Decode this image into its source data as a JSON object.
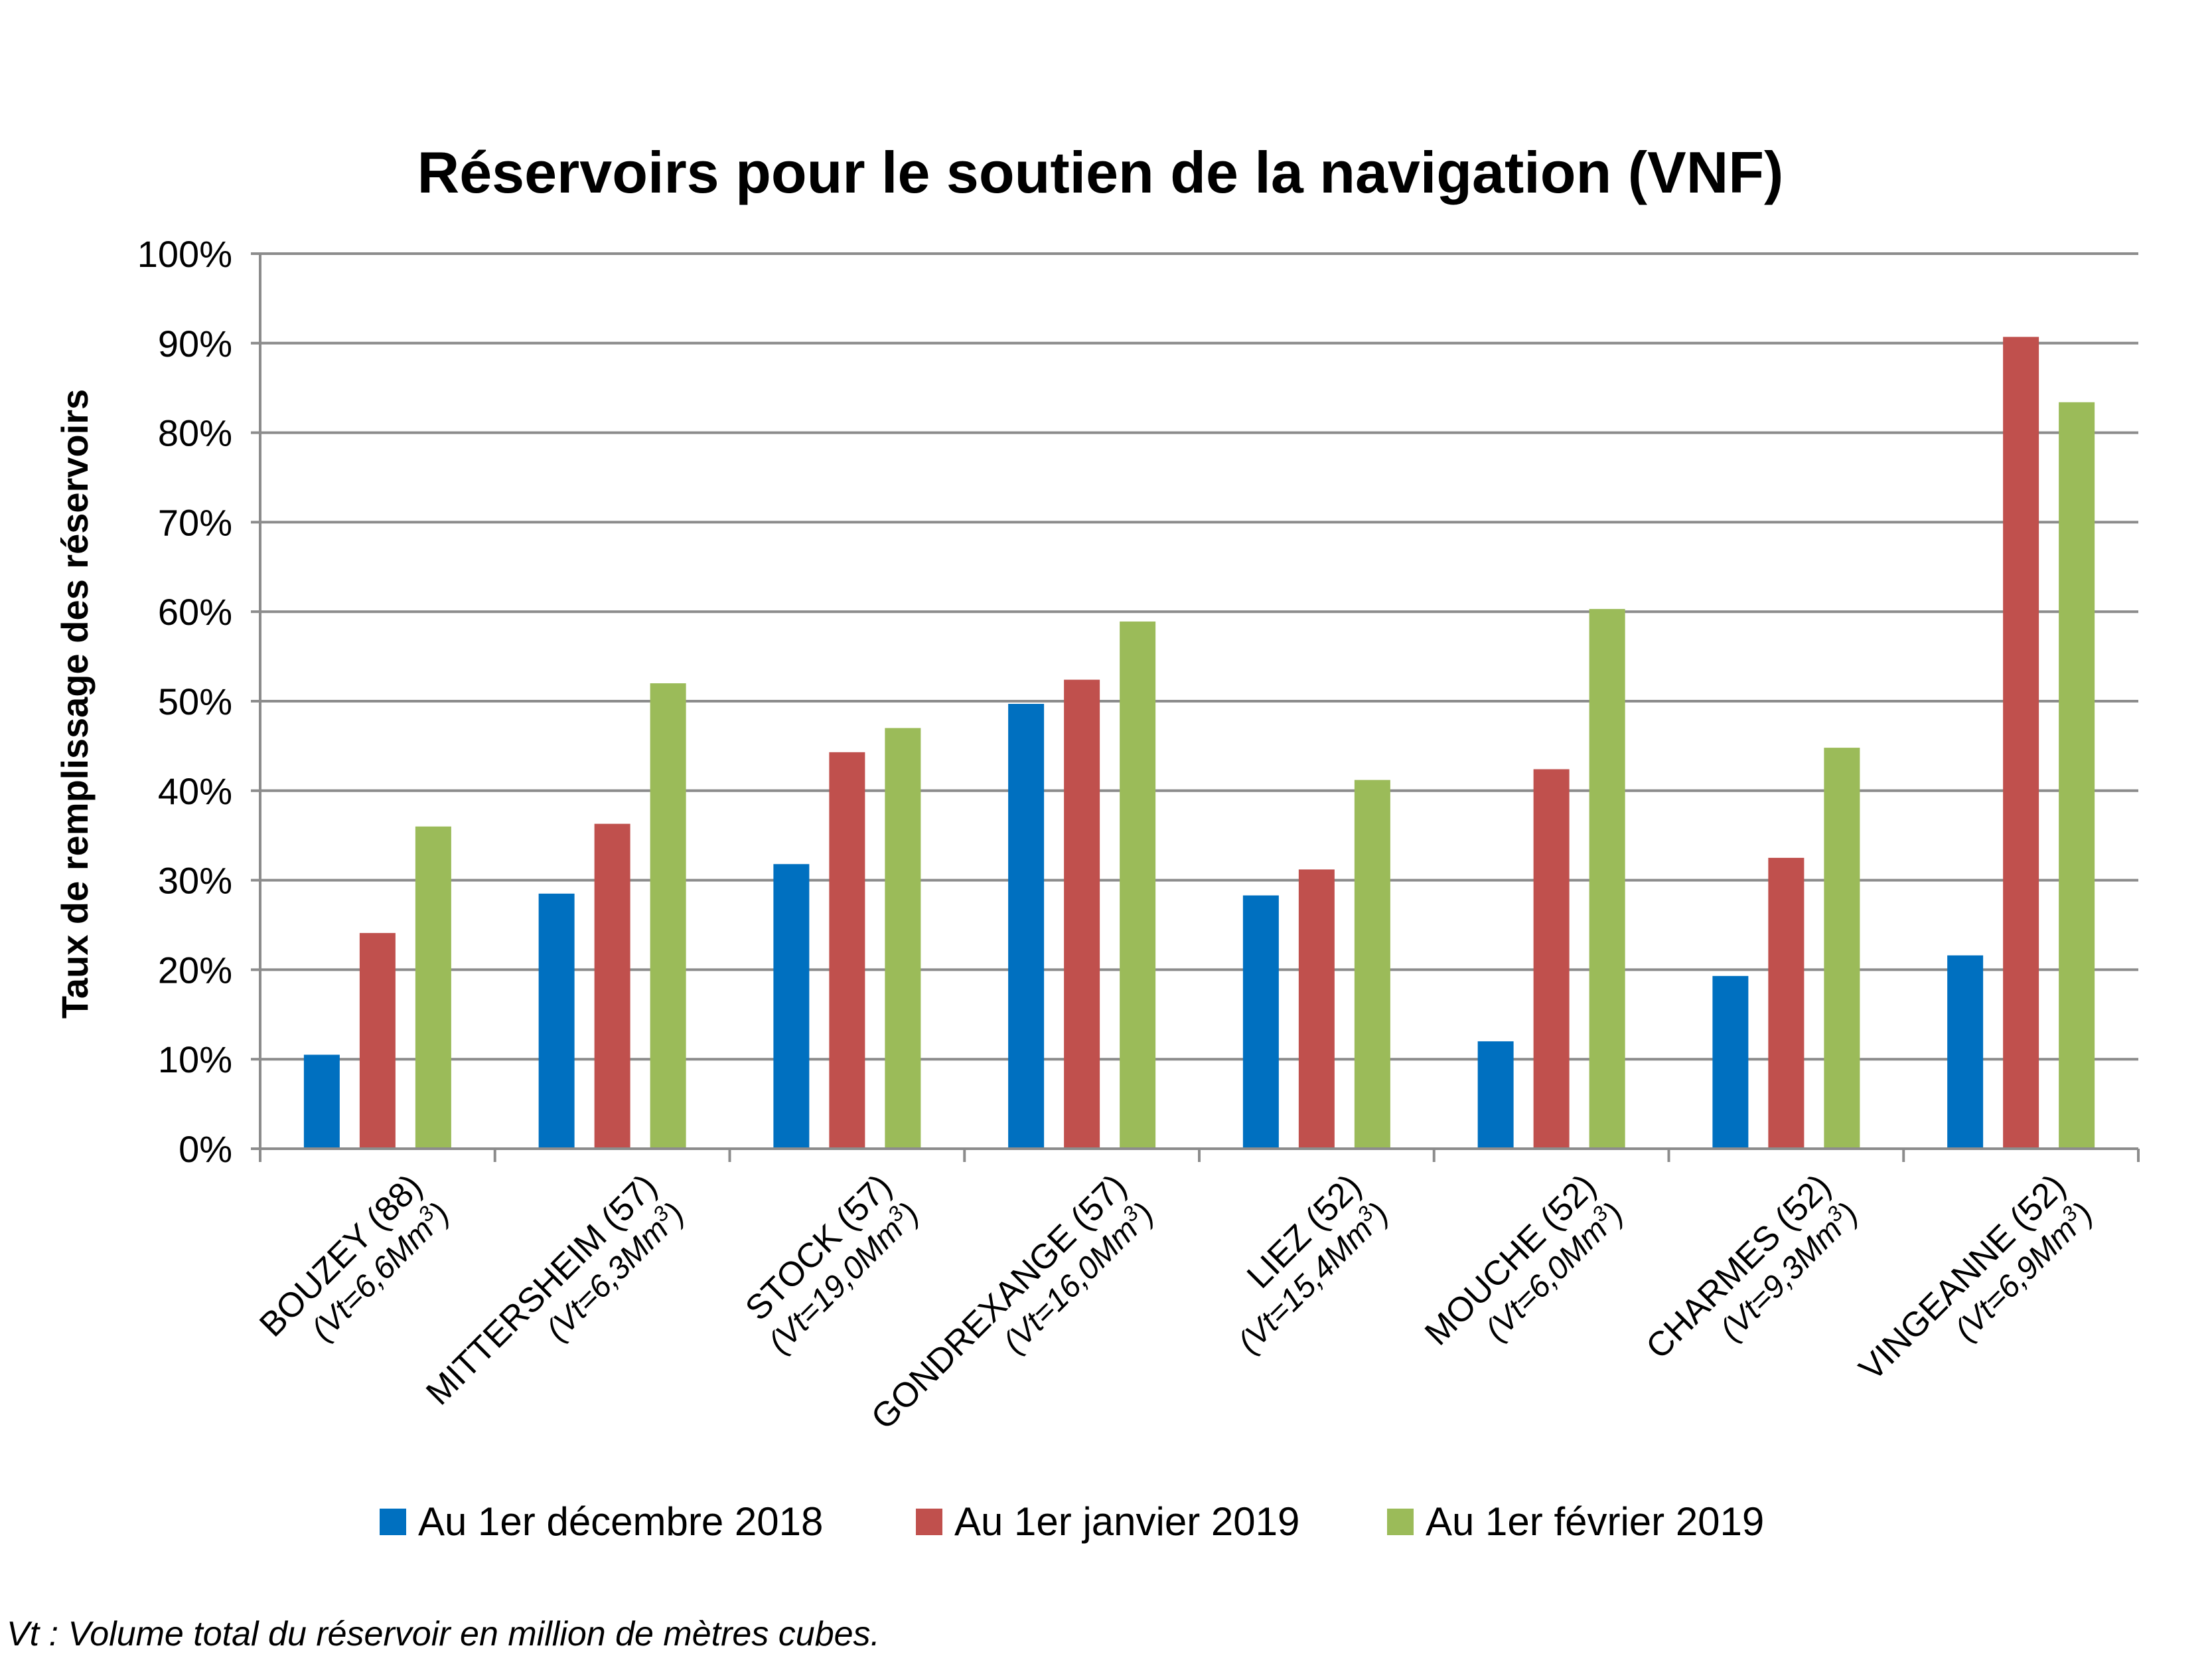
{
  "chart_data": {
    "type": "bar",
    "title": "Réservoirs pour le soutien de la navigation (VNF)",
    "ylabel": "Taux de remplissage des réservoirs",
    "xlabel": "",
    "ylim": [
      0,
      100
    ],
    "yticks": [
      "0%",
      "10%",
      "20%",
      "30%",
      "40%",
      "50%",
      "60%",
      "70%",
      "80%",
      "90%",
      "100%"
    ],
    "grid": true,
    "legend_position": "bottom",
    "categories": [
      {
        "name": "BOUZEY (88)",
        "sub": "Vt=6,6Mm",
        "sup": "3",
        "sub_end": ")"
      },
      {
        "name": "MITTERSHEIM (57)",
        "sub": "Vt=6,3Mm",
        "sup": "3",
        "sub_end": ")"
      },
      {
        "name": "STOCK (57)",
        "sub": "Vt=19,0Mm",
        "sup": "3",
        "sub_end": ")"
      },
      {
        "name": "GONDREXANGE (57)",
        "sub": "Vt=16,0Mm",
        "sup": "3",
        "sub_end": ")"
      },
      {
        "name": "LIEZ (52)",
        "sub": "Vt=15,4Mm",
        "sup": "3",
        "sub_end": ")"
      },
      {
        "name": "MOUCHE (52)",
        "sub": "Vt=6,0Mm",
        "sup": "3",
        "sub_end": ")"
      },
      {
        "name": "CHARMES (52)",
        "sub": "Vt=9,3Mm",
        "sup": "3",
        "sub_end": ")"
      },
      {
        "name": "VINGEANNE (52)",
        "sub": "Vt=6,9Mm",
        "sup": "3",
        "sub_end": ")"
      }
    ],
    "series": [
      {
        "name": "Au 1er décembre 2018",
        "color": "#0070C0",
        "values": [
          10.5,
          28.5,
          31.8,
          49.7,
          28.3,
          12.0,
          19.3,
          21.6
        ]
      },
      {
        "name": "Au 1er janvier 2019",
        "color": "#C0504D",
        "values": [
          24.1,
          36.3,
          44.3,
          52.4,
          31.2,
          42.4,
          32.5,
          90.7
        ]
      },
      {
        "name": "Au 1er février 2019",
        "color": "#9BBB59",
        "values": [
          36.0,
          52.0,
          47.0,
          58.9,
          41.2,
          60.3,
          44.8,
          83.4
        ]
      }
    ],
    "footnote": "Vt : Volume total du réservoir en million de mètres cubes."
  }
}
